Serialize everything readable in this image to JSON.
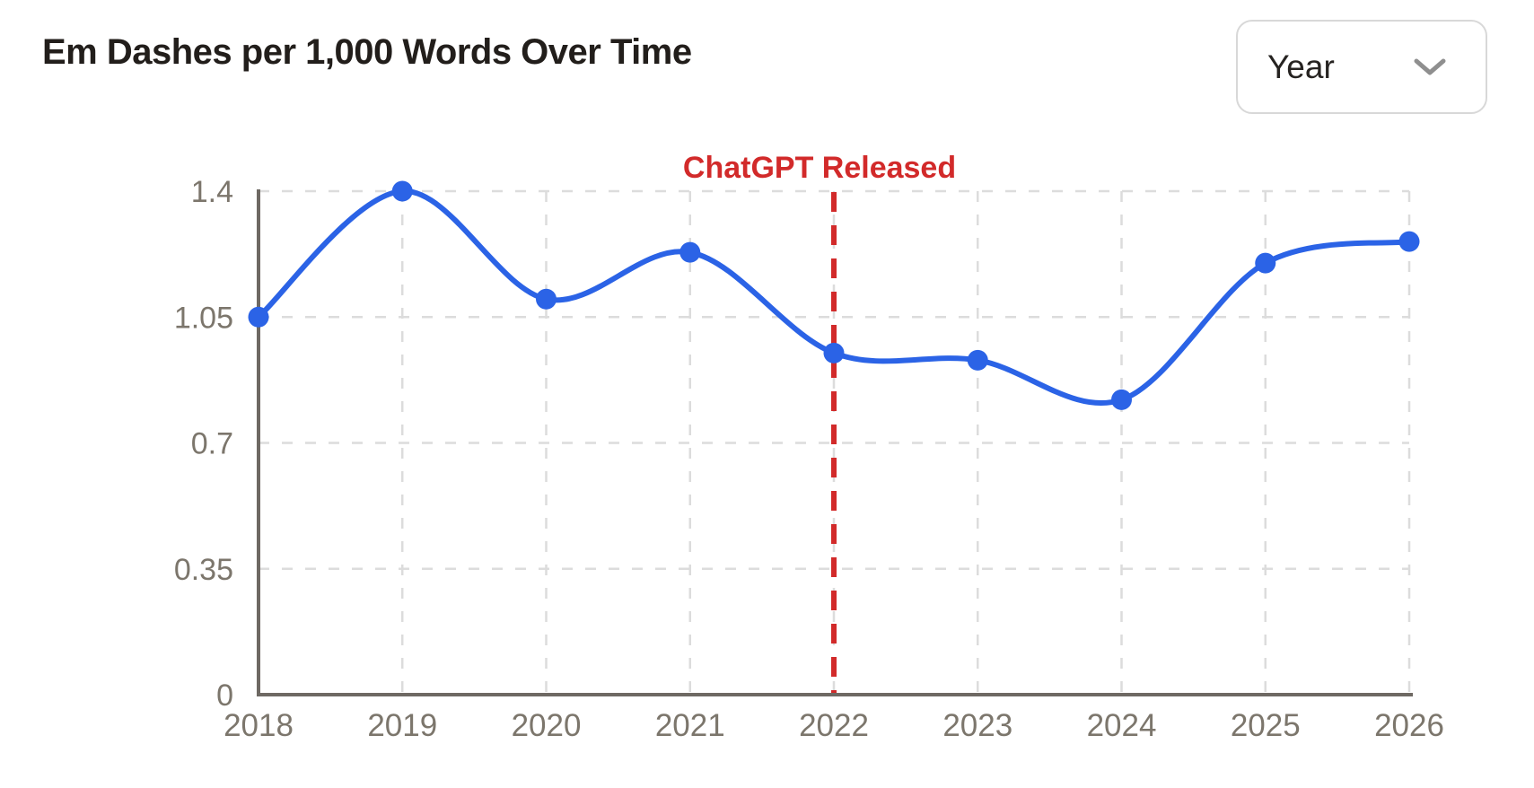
{
  "header": {
    "title": "Em Dashes per 1,000 Words Over Time"
  },
  "controls": {
    "granularity_dropdown": {
      "value": "Year",
      "icon": "chevron-down-icon"
    }
  },
  "chart_data": {
    "type": "line",
    "title": "Em Dashes per 1,000 Words Over Time",
    "x": [
      2018,
      2019,
      2020,
      2021,
      2022,
      2023,
      2024,
      2025,
      2026
    ],
    "series": [
      {
        "name": "Em dashes per 1,000 words",
        "values": [
          1.05,
          1.4,
          1.1,
          1.23,
          0.95,
          0.93,
          0.82,
          1.2,
          1.26
        ]
      }
    ],
    "xlabel": "",
    "ylabel": "",
    "ylim": [
      0,
      1.4
    ],
    "yticks": [
      0,
      0.35,
      0.7,
      1.05,
      1.4
    ],
    "grid": true,
    "legend": false,
    "annotation": {
      "label": "ChatGPT Released",
      "x": 2022
    },
    "colors": {
      "line": "#2b63e6",
      "annotation": "#d22a2a",
      "grid": "#dcdcdc",
      "axis": "#6e6963",
      "tick_text": "#7c766c"
    }
  }
}
